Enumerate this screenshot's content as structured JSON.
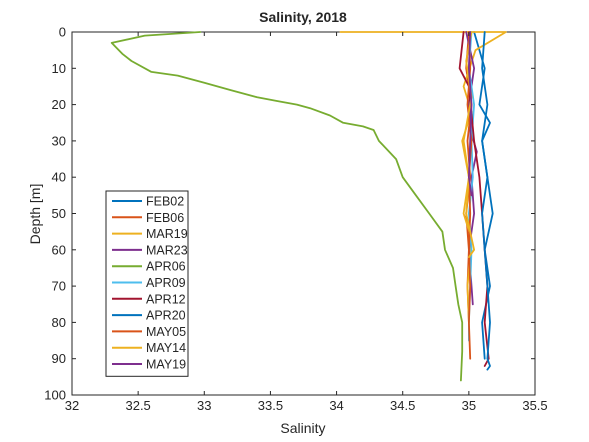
{
  "chart_data": {
    "type": "line",
    "title": "Salinity, 2018",
    "xlabel": "Salinity",
    "ylabel": "Depth [m]",
    "xlim": [
      32,
      35.5
    ],
    "ylim": [
      0,
      100
    ],
    "y_reversed": true,
    "grid": false,
    "legend_position": "bottom-left",
    "xticks": [
      "32",
      "32.5",
      "33",
      "33.5",
      "34",
      "34.5",
      "35",
      "35.5"
    ],
    "yticks": [
      "0",
      "10",
      "20",
      "30",
      "40",
      "50",
      "60",
      "70",
      "80",
      "90",
      "100"
    ],
    "series": [
      {
        "name": "FEB02",
        "color": "#0072BD",
        "x": [
          35.04,
          35.12,
          35.08,
          35.16,
          35.1,
          35.14,
          35.18,
          35.12,
          35.16,
          35.1,
          35.12
        ],
        "y": [
          0,
          10,
          20,
          25,
          30,
          40,
          50,
          60,
          70,
          80,
          90
        ]
      },
      {
        "name": "FEB06",
        "color": "#D95319",
        "x": [
          35.0,
          34.98,
          35.02,
          34.99,
          35.01,
          34.98,
          35.0,
          34.99,
          35.0
        ],
        "y": [
          0,
          10,
          20,
          30,
          40,
          50,
          60,
          70,
          80
        ]
      },
      {
        "name": "MAR19",
        "color": "#EDB120",
        "x": [
          34.03,
          35.28,
          35.05,
          34.96,
          35.02,
          34.95,
          35.0,
          34.96,
          35.02,
          34.99,
          35.0
        ],
        "y": [
          0,
          0,
          5,
          15,
          22,
          30,
          40,
          50,
          57,
          70,
          80
        ]
      },
      {
        "name": "MAR23",
        "color": "#7E2F8E",
        "x": [
          34.98,
          35.04,
          35.0,
          35.02,
          35.06,
          35.02,
          35.04,
          35.0,
          35.02,
          35.03
        ],
        "y": [
          0,
          10,
          20,
          28,
          33,
          40,
          50,
          60,
          70,
          75
        ]
      },
      {
        "name": "APR06",
        "color": "#77AC30",
        "x": [
          32.97,
          32.55,
          32.3,
          32.38,
          32.45,
          32.6,
          32.8,
          33.0,
          33.2,
          33.4,
          33.55,
          33.7,
          33.8,
          33.95,
          34.05,
          34.2,
          34.28,
          34.32,
          34.45,
          34.5,
          34.6,
          34.7,
          34.8,
          34.82,
          34.88,
          34.9,
          34.92,
          34.95,
          34.95,
          34.94
        ],
        "y": [
          0,
          1,
          3,
          6,
          8,
          11,
          12,
          14,
          16,
          18,
          19,
          20,
          21,
          23,
          25,
          26,
          27,
          30,
          35,
          40,
          45,
          50,
          55,
          60,
          65,
          70,
          75,
          80,
          88,
          96
        ]
      },
      {
        "name": "APR09",
        "color": "#4DBEEE",
        "x": [
          35.02,
          35.0,
          35.04,
          35.02,
          35.03,
          35.0,
          35.02,
          35.01,
          35.0,
          35.0
        ],
        "y": [
          0,
          10,
          20,
          30,
          40,
          50,
          60,
          70,
          80,
          85
        ]
      },
      {
        "name": "APR12",
        "color": "#A2142F",
        "x": [
          34.96,
          34.93,
          35.0,
          35.04,
          35.08,
          35.1,
          35.12,
          35.14,
          35.12,
          35.15,
          35.12
        ],
        "y": [
          0,
          10,
          15,
          30,
          40,
          50,
          60,
          70,
          80,
          90,
          92
        ]
      },
      {
        "name": "APR20",
        "color": "#0072BD",
        "x": [
          35.12,
          35.1,
          35.14,
          35.1,
          35.14,
          35.1,
          35.12,
          35.14,
          35.16,
          35.14,
          35.16,
          35.14
        ],
        "y": [
          0,
          10,
          20,
          30,
          40,
          50,
          60,
          70,
          80,
          90,
          92,
          93
        ]
      },
      {
        "name": "MAY05",
        "color": "#D95319",
        "x": [
          35.0,
          35.01,
          34.99,
          35.02,
          35.0,
          35.01,
          35.0,
          35.01,
          35.0,
          35.01
        ],
        "y": [
          0,
          10,
          20,
          30,
          40,
          50,
          60,
          70,
          80,
          90
        ]
      },
      {
        "name": "MAY14",
        "color": "#EDB120",
        "x": [
          35.02,
          34.98,
          35.02,
          34.96,
          35.0,
          34.98,
          35.04,
          35.0
        ],
        "y": [
          0,
          8,
          18,
          30,
          40,
          50,
          60,
          62
        ]
      },
      {
        "name": "MAY19",
        "color": "#7E2F8E",
        "x": [
          35.01,
          35.0,
          35.02,
          35.01,
          35.0,
          35.02
        ],
        "y": [
          0,
          10,
          20,
          30,
          40,
          45
        ]
      }
    ]
  }
}
